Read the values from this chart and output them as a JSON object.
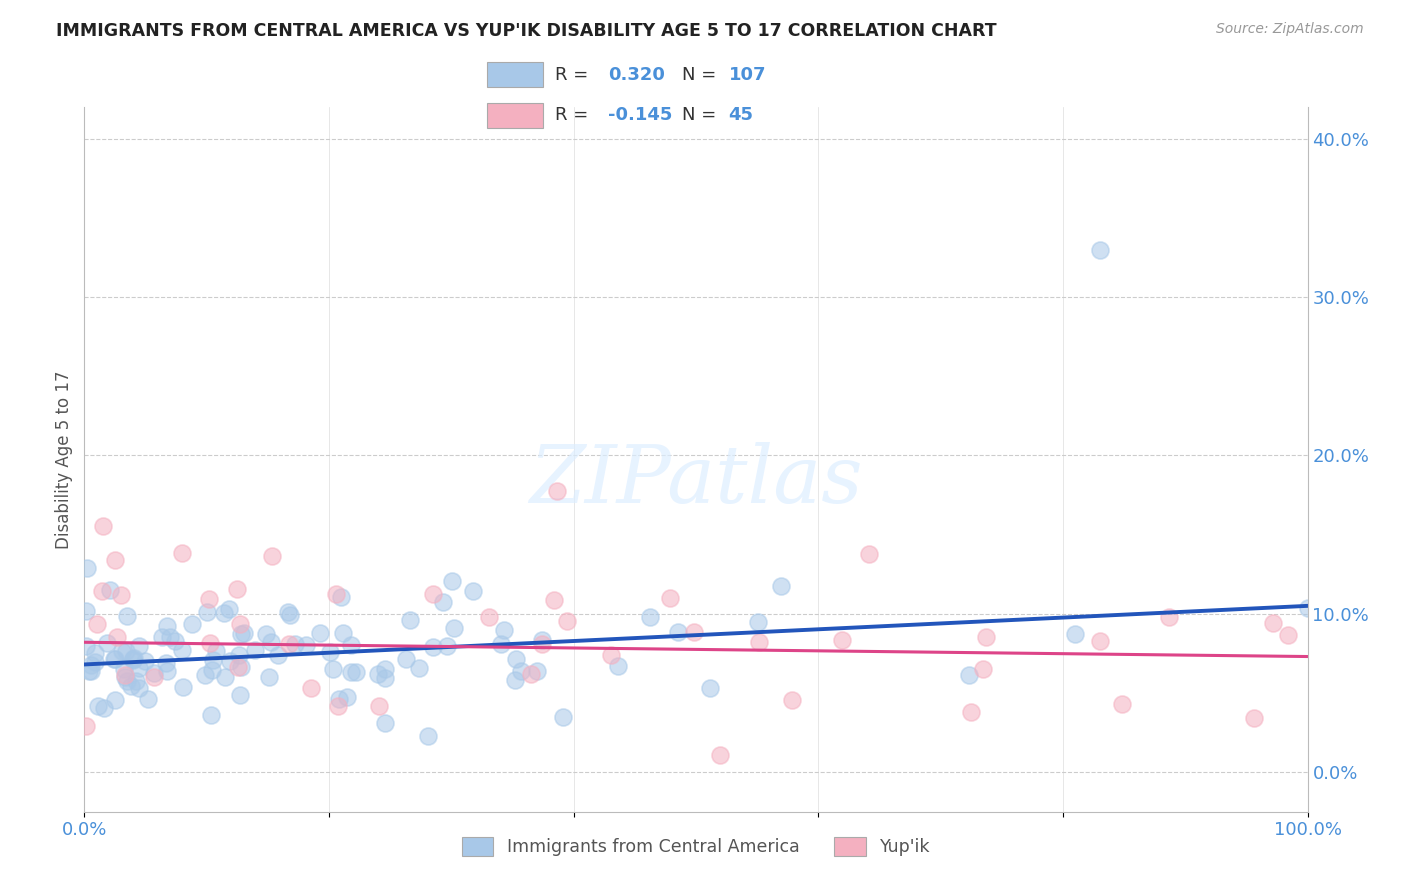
{
  "title": "IMMIGRANTS FROM CENTRAL AMERICA VS YUP'IK DISABILITY AGE 5 TO 17 CORRELATION CHART",
  "source": "Source: ZipAtlas.com",
  "ylabel": "Disability Age 5 to 17",
  "legend_labels": [
    "Immigrants from Central America",
    "Yup'ik"
  ],
  "R_blue": 0.32,
  "N_blue": 107,
  "R_pink": -0.145,
  "N_pink": 45,
  "color_blue": "#a8c8e8",
  "color_pink": "#f4b0c0",
  "line_blue": "#2255bb",
  "line_pink": "#dd4488",
  "xlim": [
    0.0,
    1.0
  ],
  "ylim": [
    -0.025,
    0.42
  ],
  "yticks_right": [
    0.0,
    0.1,
    0.2,
    0.3,
    0.4
  ],
  "blue_line_y0": 0.068,
  "blue_line_y1": 0.105,
  "pink_line_y0": 0.082,
  "pink_line_y1": 0.073
}
